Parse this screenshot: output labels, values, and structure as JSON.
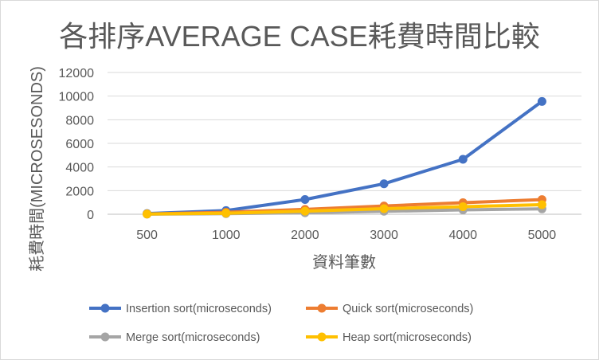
{
  "chart_data": {
    "type": "line",
    "title": "各排序AVERAGE CASE耗費時間比較",
    "xlabel": "資料筆數",
    "ylabel": "耗費時間(MICROSESONDS)",
    "categories": [
      "500",
      "1000",
      "2000",
      "3000",
      "4000",
      "5000"
    ],
    "y_ticks": [
      "0",
      "2000",
      "4000",
      "6000",
      "8000",
      "10000",
      "12000"
    ],
    "ylim": [
      0,
      12000
    ],
    "grid": true,
    "legend_position": "bottom",
    "series": [
      {
        "name": "Insertion sort(microseconds)",
        "color": "#4472C4",
        "values": [
          60,
          310,
          1250,
          2580,
          4650,
          9550
        ]
      },
      {
        "name": "Quick sort(microseconds)",
        "color": "#ED7D31",
        "values": [
          30,
          170,
          410,
          700,
          980,
          1240
        ]
      },
      {
        "name": "Merge sort(microseconds)",
        "color": "#A5A5A5",
        "values": [
          10,
          50,
          130,
          250,
          370,
          460
        ]
      },
      {
        "name": "Heap sort(microseconds)",
        "color": "#FFC000",
        "values": [
          20,
          90,
          260,
          470,
          640,
          810
        ]
      }
    ]
  }
}
